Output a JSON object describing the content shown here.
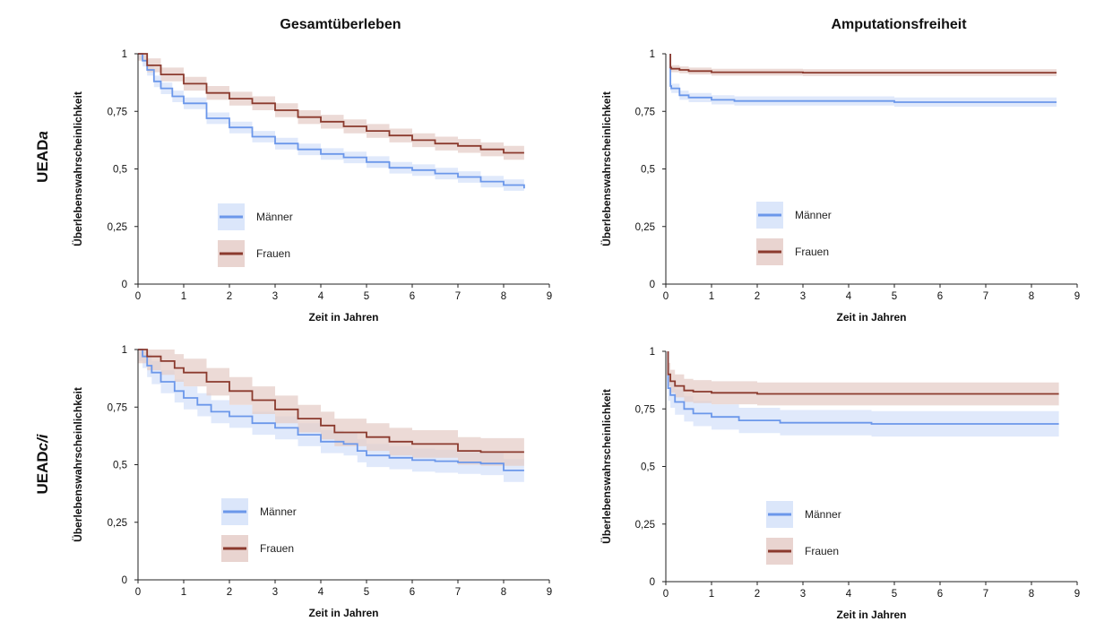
{
  "column_titles": [
    "Gesamtüberleben",
    "Amputationsfreiheit"
  ],
  "row_titles": [
    {
      "prefix": "UEAD",
      "suffix": "a"
    },
    {
      "prefix": "UEAD",
      "suffix": "c/i"
    }
  ],
  "colors": {
    "maenner_line": "#6b97ea",
    "maenner_band": "#d5e2f9",
    "frauen_line": "#8b3a2e",
    "frauen_band": "#e5cdc8"
  },
  "chart_data": [
    {
      "type": "line",
      "position": "top-left",
      "title": "Gesamtüberleben",
      "row": "UEADa",
      "xlabel": "Zeit in Jahren",
      "ylabel": "Überlebenswahrscheinlichkeit",
      "xlim": [
        0,
        9
      ],
      "ylim": [
        0,
        1
      ],
      "xticks": [
        0,
        1,
        2,
        3,
        4,
        5,
        6,
        7,
        8,
        9
      ],
      "xtick_labels": [
        "0",
        "1",
        "2",
        "3",
        "4",
        "5",
        "6",
        "7",
        "8",
        "9"
      ],
      "yticks": [
        0,
        0.25,
        0.5,
        0.75,
        1
      ],
      "ytick_labels": [
        "0",
        "0,25",
        "0,5",
        "0,75",
        "1"
      ],
      "legend": [
        "Männer",
        "Frauen"
      ],
      "legend_position": "lower-left",
      "series": [
        {
          "name": "Männer",
          "color": "#6b97ea",
          "band": 0.025,
          "x": [
            0,
            0.1,
            0.2,
            0.35,
            0.5,
            0.75,
            1,
            1.5,
            2,
            2.5,
            3,
            3.5,
            4,
            4.5,
            5,
            5.5,
            6,
            6.5,
            7,
            7.5,
            8,
            8.45
          ],
          "y": [
            1,
            0.97,
            0.93,
            0.88,
            0.85,
            0.815,
            0.785,
            0.72,
            0.68,
            0.64,
            0.61,
            0.585,
            0.565,
            0.55,
            0.53,
            0.505,
            0.495,
            0.48,
            0.465,
            0.445,
            0.43,
            0.415
          ]
        },
        {
          "name": "Frauen",
          "color": "#8b3a2e",
          "band": 0.03,
          "x": [
            0,
            0.2,
            0.5,
            1,
            1.5,
            2,
            2.5,
            3,
            3.5,
            4,
            4.5,
            5,
            5.5,
            6,
            6.5,
            7,
            7.5,
            8,
            8.45
          ],
          "y": [
            1,
            0.95,
            0.91,
            0.87,
            0.83,
            0.805,
            0.785,
            0.755,
            0.725,
            0.705,
            0.685,
            0.665,
            0.645,
            0.625,
            0.61,
            0.6,
            0.585,
            0.57,
            0.57
          ]
        }
      ]
    },
    {
      "type": "line",
      "position": "top-right",
      "title": "Amputationsfreiheit",
      "row": "UEADa",
      "xlabel": "Zeit in Jahren",
      "ylabel": "Überlebenswahrscheinlichkeit",
      "xlim": [
        0,
        9
      ],
      "ylim": [
        0,
        1
      ],
      "xticks": [
        0,
        1,
        2,
        3,
        4,
        5,
        6,
        7,
        8,
        9
      ],
      "xtick_labels": [
        "0",
        "1",
        "2",
        "3",
        "4",
        "5",
        "6",
        "7",
        "8",
        "9"
      ],
      "yticks": [
        0,
        0.25,
        0.5,
        0.75,
        1
      ],
      "ytick_labels": [
        "0",
        "0,25",
        "0,5",
        "0,75",
        "1"
      ],
      "legend": [
        "Männer",
        "Frauen"
      ],
      "legend_position": "lower-left",
      "series": [
        {
          "name": "Männer",
          "color": "#6b97ea",
          "band": 0.02,
          "x": [
            0.1,
            0.1,
            0.12,
            0.3,
            0.5,
            1,
            1.5,
            2,
            3,
            4,
            5,
            6,
            7,
            8,
            8.55
          ],
          "y": [
            1,
            0.86,
            0.85,
            0.82,
            0.81,
            0.8,
            0.795,
            0.795,
            0.795,
            0.795,
            0.79,
            0.79,
            0.79,
            0.79,
            0.79
          ]
        },
        {
          "name": "Frauen",
          "color": "#8b3a2e",
          "band": 0.015,
          "x": [
            0.1,
            0.1,
            0.12,
            0.3,
            0.5,
            1,
            2,
            3,
            4,
            5,
            6,
            7,
            8,
            8.55
          ],
          "y": [
            1,
            0.94,
            0.935,
            0.93,
            0.925,
            0.92,
            0.92,
            0.918,
            0.918,
            0.918,
            0.918,
            0.918,
            0.918,
            0.918
          ]
        }
      ]
    },
    {
      "type": "line",
      "position": "bottom-left",
      "title": "Gesamtüberleben",
      "row": "UEADc/i",
      "xlabel": "Zeit in Jahren",
      "ylabel": "Überlebenswahrscheinlichkeit",
      "xlim": [
        0,
        9
      ],
      "ylim": [
        0,
        1
      ],
      "xticks": [
        0,
        1,
        2,
        3,
        4,
        5,
        6,
        7,
        8,
        9
      ],
      "xtick_labels": [
        "0",
        "1",
        "2",
        "3",
        "4",
        "5",
        "6",
        "7",
        "8",
        "9"
      ],
      "yticks": [
        0,
        0.25,
        0.5,
        0.75,
        1
      ],
      "ytick_labels": [
        "0",
        "0,25",
        "0,5",
        "0,75",
        "1"
      ],
      "legend": [
        "Männer",
        "Frauen"
      ],
      "legend_position": "lower-left",
      "series": [
        {
          "name": "Männer",
          "color": "#6b97ea",
          "band": 0.05,
          "x": [
            0,
            0.1,
            0.2,
            0.3,
            0.5,
            0.8,
            1,
            1.3,
            1.6,
            2,
            2.5,
            3,
            3.5,
            4,
            4.5,
            4.8,
            5,
            5.5,
            6,
            6.5,
            7,
            7.5,
            8,
            8.45
          ],
          "y": [
            1,
            0.97,
            0.93,
            0.9,
            0.86,
            0.82,
            0.79,
            0.76,
            0.73,
            0.71,
            0.68,
            0.66,
            0.63,
            0.6,
            0.59,
            0.56,
            0.54,
            0.53,
            0.52,
            0.515,
            0.51,
            0.505,
            0.475,
            0.475
          ]
        },
        {
          "name": "Frauen",
          "color": "#8b3a2e",
          "band": 0.06,
          "x": [
            0,
            0.2,
            0.5,
            0.8,
            1,
            1.5,
            2,
            2.5,
            3,
            3.5,
            4,
            4.3,
            5,
            5.5,
            6,
            6.5,
            7,
            7.5,
            8,
            8.45
          ],
          "y": [
            1,
            0.97,
            0.95,
            0.92,
            0.9,
            0.86,
            0.82,
            0.78,
            0.74,
            0.7,
            0.67,
            0.64,
            0.62,
            0.6,
            0.59,
            0.59,
            0.56,
            0.555,
            0.555,
            0.555
          ]
        }
      ]
    },
    {
      "type": "line",
      "position": "bottom-right",
      "title": "Amputationsfreiheit",
      "row": "UEADc/i",
      "xlabel": "Zeit in Jahren",
      "ylabel": "Überlebenswahrscheinlichkeit",
      "xlim": [
        0,
        9
      ],
      "ylim": [
        0,
        1
      ],
      "xticks": [
        0,
        1,
        2,
        3,
        4,
        5,
        6,
        7,
        8,
        9
      ],
      "xtick_labels": [
        "0",
        "1",
        "2",
        "3",
        "4",
        "5",
        "6",
        "7",
        "8",
        "9"
      ],
      "yticks": [
        0,
        0.25,
        0.5,
        0.75,
        1
      ],
      "ytick_labels": [
        "0",
        "0,25",
        "0,5",
        "0,75",
        "1"
      ],
      "legend": [
        "Männer",
        "Frauen"
      ],
      "legend_position": "lower-left",
      "series": [
        {
          "name": "Männer",
          "color": "#6b97ea",
          "band": 0.055,
          "x": [
            0.05,
            0.05,
            0.1,
            0.2,
            0.4,
            0.6,
            1,
            1.6,
            2.5,
            3.5,
            4.5,
            5.5,
            6.5,
            7.5,
            8.6
          ],
          "y": [
            1,
            0.84,
            0.81,
            0.78,
            0.75,
            0.73,
            0.715,
            0.7,
            0.69,
            0.69,
            0.685,
            0.685,
            0.685,
            0.685,
            0.685
          ]
        },
        {
          "name": "Frauen",
          "color": "#8b3a2e",
          "band": 0.05,
          "x": [
            0.05,
            0.05,
            0.1,
            0.2,
            0.4,
            0.6,
            1,
            2,
            3,
            4,
            5,
            6,
            7,
            8,
            8.6
          ],
          "y": [
            1,
            0.9,
            0.87,
            0.85,
            0.83,
            0.825,
            0.82,
            0.815,
            0.815,
            0.815,
            0.815,
            0.815,
            0.815,
            0.815,
            0.815
          ]
        }
      ]
    }
  ]
}
